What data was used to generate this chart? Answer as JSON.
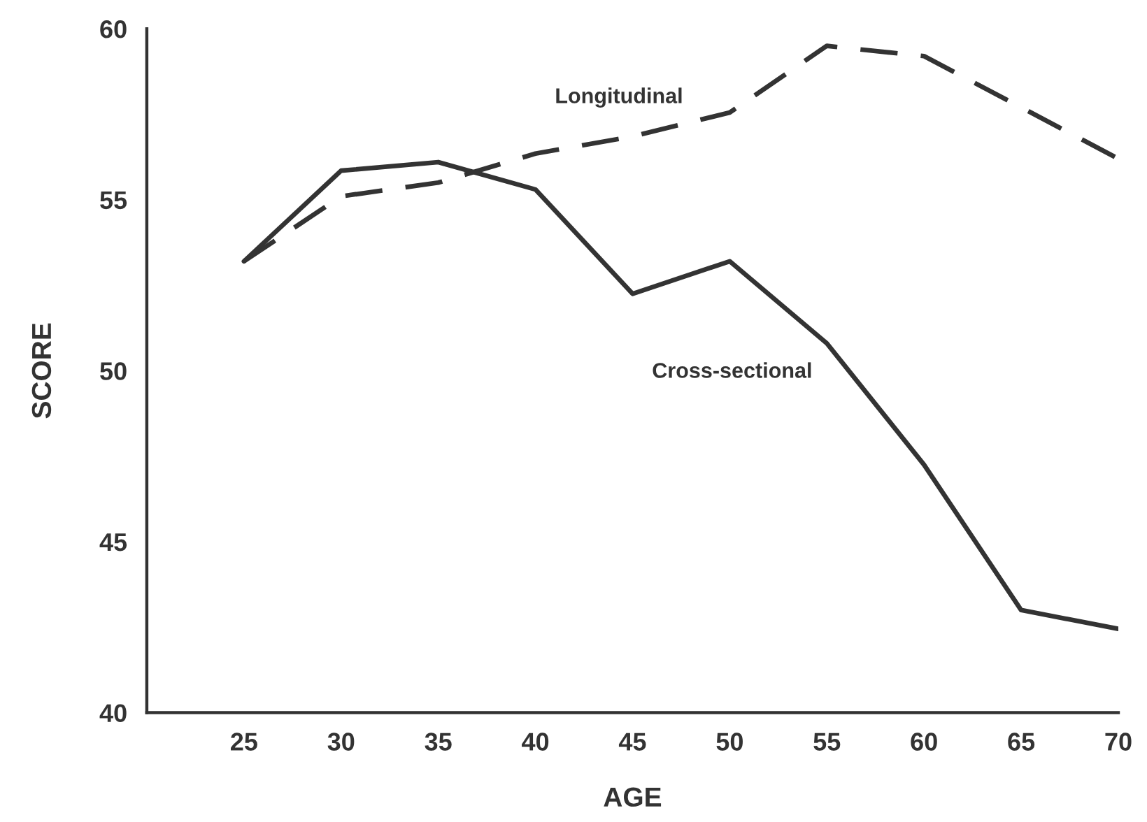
{
  "chart_data": {
    "type": "line",
    "xlabel": "AGE",
    "ylabel": "SCORE",
    "x": [
      25,
      30,
      35,
      40,
      45,
      50,
      55,
      60,
      65,
      70
    ],
    "xlim": [
      20,
      70
    ],
    "xticks": [
      25,
      30,
      35,
      40,
      45,
      50,
      55,
      60,
      65,
      70
    ],
    "ylim": [
      40,
      60
    ],
    "yticks": [
      40,
      45,
      50,
      55,
      60
    ],
    "grid": false,
    "legend": false,
    "marker": "none",
    "series": [
      {
        "name": "Longitudinal",
        "color": "#333333",
        "line_style": "dashed",
        "values": [
          53.2,
          55.1,
          55.5,
          56.35,
          56.85,
          57.55,
          59.5,
          59.2,
          57.7,
          56.2
        ]
      },
      {
        "name": "Cross-sectional",
        "color": "#333333",
        "line_style": "solid",
        "values": [
          53.2,
          55.85,
          56.1,
          55.3,
          52.25,
          53.2,
          50.8,
          47.25,
          43.0,
          42.45
        ]
      }
    ]
  }
}
